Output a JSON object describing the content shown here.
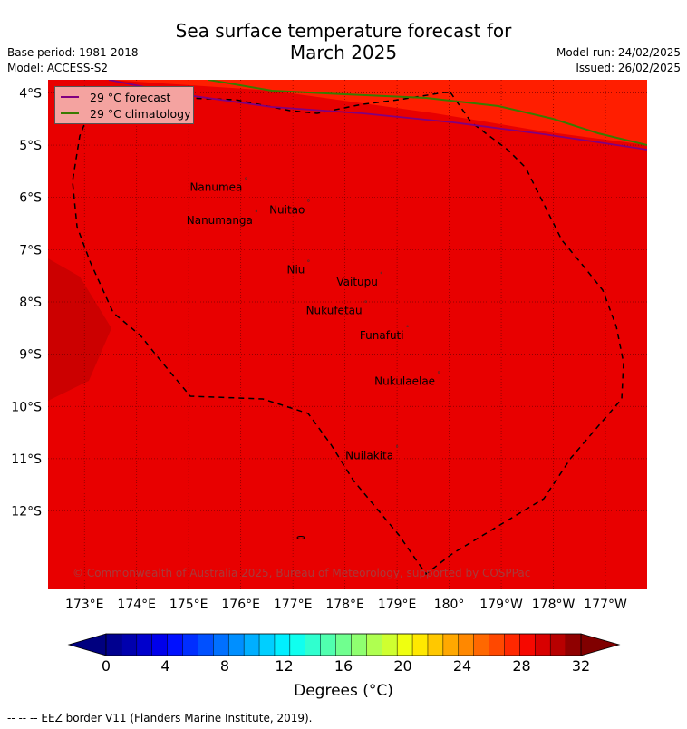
{
  "title_line1": "Sea surface temperature forecast for",
  "title_line2": "March 2025",
  "base_period": "Base period: 1981-2018",
  "model": "Model: ACCESS-S2",
  "model_run": "Model run: 24/02/2025",
  "issued": "Issued: 26/02/2025",
  "map": {
    "lon_min": 172.3,
    "lon_max": 183.8,
    "lat_min": -13.5,
    "lat_max": -3.75,
    "colors": {
      "base_fill": "#e80000",
      "warm_fill": "#ff1e00",
      "cool_fill": "#cc0000",
      "grid": "#7a0000",
      "forecast_line": "#800080",
      "climatology_line": "#3a7a00",
      "eez_border": "#000000"
    },
    "lon_ticks": [
      {
        "value": 173,
        "label": "173°E"
      },
      {
        "value": 174,
        "label": "174°E"
      },
      {
        "value": 175,
        "label": "175°E"
      },
      {
        "value": 176,
        "label": "176°E"
      },
      {
        "value": 177,
        "label": "177°E"
      },
      {
        "value": 178,
        "label": "178°E"
      },
      {
        "value": 179,
        "label": "179°E"
      },
      {
        "value": 180,
        "label": "180°"
      },
      {
        "value": 181,
        "label": "179°W"
      },
      {
        "value": 182,
        "label": "178°W"
      },
      {
        "value": 183,
        "label": "177°W"
      }
    ],
    "lat_ticks": [
      {
        "value": -4,
        "label": "4°S"
      },
      {
        "value": -5,
        "label": "5°S"
      },
      {
        "value": -6,
        "label": "6°S"
      },
      {
        "value": -7,
        "label": "7°S"
      },
      {
        "value": -8,
        "label": "8°S"
      },
      {
        "value": -9,
        "label": "9°S"
      },
      {
        "value": -10,
        "label": "10°S"
      },
      {
        "value": -11,
        "label": "11°S"
      },
      {
        "value": -12,
        "label": "12°S"
      }
    ],
    "places": [
      {
        "name": "Nanumea",
        "lon": 176.1,
        "lat": -5.67
      },
      {
        "name": "Nuitao",
        "lon": 177.3,
        "lat": -6.1
      },
      {
        "name": "Nanumanga",
        "lon": 176.3,
        "lat": -6.3
      },
      {
        "name": "Niu",
        "lon": 177.3,
        "lat": -7.25
      },
      {
        "name": "Vaitupu",
        "lon": 178.7,
        "lat": -7.48
      },
      {
        "name": "Nukufetau",
        "lon": 178.4,
        "lat": -8.03
      },
      {
        "name": "Funafuti",
        "lon": 179.2,
        "lat": -8.5
      },
      {
        "name": "Nukulaelae",
        "lon": 179.8,
        "lat": -9.38
      },
      {
        "name": "Nuilakita",
        "lon": 179.0,
        "lat": -10.8
      }
    ]
  },
  "legend": {
    "forecast_label": "29 °C  forecast",
    "climatology_label": "29 °C  climatology"
  },
  "copyright": "© Commonwealth of Australia 2025, Bureau of Meteorology, supported by COSPPac",
  "colorbar": {
    "colors": [
      "#00008f",
      "#0000ae",
      "#0000cc",
      "#0000eb",
      "#0010ff",
      "#002eff",
      "#0050ff",
      "#0070ff",
      "#008fff",
      "#00afff",
      "#00cfff",
      "#00efff",
      "#10ffef",
      "#30ffcf",
      "#50ffaf",
      "#70ff8f",
      "#8fff70",
      "#afff50",
      "#cfff30",
      "#efff10",
      "#ffe800",
      "#ffc800",
      "#ffa800",
      "#ff8800",
      "#ff6800",
      "#ff4800",
      "#ff2800",
      "#f60800",
      "#d80000",
      "#b80000",
      "#8f0000"
    ],
    "under_color": "#00007f",
    "over_color": "#800000",
    "vmin": 0,
    "vmax": 32,
    "ticks": [
      {
        "value": 0,
        "label": "0"
      },
      {
        "value": 4,
        "label": "4"
      },
      {
        "value": 8,
        "label": "8"
      },
      {
        "value": 12,
        "label": "12"
      },
      {
        "value": 16,
        "label": "16"
      },
      {
        "value": 20,
        "label": "20"
      },
      {
        "value": 24,
        "label": "24"
      },
      {
        "value": 28,
        "label": "28"
      },
      {
        "value": 32,
        "label": "32"
      }
    ],
    "unit_label": "Degrees (°C)"
  },
  "footnote": "--  --  -- EEZ border V11 (Flanders Marine Institute, 2019)."
}
